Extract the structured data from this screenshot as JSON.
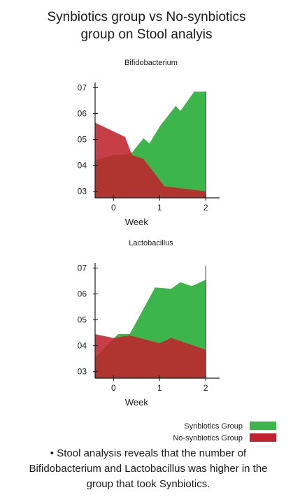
{
  "title_line1": "Synbiotics group vs No-synbiotics",
  "title_line2": "group on Stool analyis",
  "colors": {
    "synbiotics": "#3cb54a",
    "no_synbiotics": "#c0232e"
  },
  "legend": {
    "synbiotics": "Synbiotics Group",
    "no_synbiotics": "No-synbiotics Group"
  },
  "note": "•  Stool analysis reveals that the number of Bifidobacterium and Lactobacillus was higher in the group that took Synbiotics.",
  "chart_data": [
    {
      "type": "area",
      "title": "Bifidobacterium",
      "xlabel": "Week",
      "ylabel": "",
      "xlim": [
        -0.4,
        2.3
      ],
      "ylim": [
        2.75,
        7.2
      ],
      "x_ticks": [
        "0",
        "1",
        "2"
      ],
      "y_ticks": [
        "03",
        "04",
        "05",
        "06",
        "07"
      ],
      "series": [
        {
          "name": "Synbiotics Group",
          "x": [
            -0.4,
            0.0,
            0.25,
            0.4,
            0.65,
            0.78,
            1.0,
            1.35,
            1.45,
            1.75,
            2.0
          ],
          "values": [
            4.2,
            4.4,
            4.4,
            4.5,
            5.05,
            4.85,
            5.5,
            6.3,
            6.1,
            6.85,
            6.85
          ]
        },
        {
          "name": "No-synbiotics Group",
          "x": [
            -0.4,
            0.25,
            0.4,
            0.65,
            1.1,
            2.0
          ],
          "values": [
            5.65,
            5.1,
            4.4,
            4.25,
            3.2,
            3.0
          ]
        }
      ]
    },
    {
      "type": "area",
      "title": "Lactobacillus",
      "xlabel": "Week",
      "ylabel": "",
      "xlim": [
        -0.4,
        2.3
      ],
      "ylim": [
        2.75,
        7.2
      ],
      "x_ticks": [
        "0",
        "1",
        "2"
      ],
      "y_ticks": [
        "03",
        "04",
        "05",
        "06",
        "07"
      ],
      "series": [
        {
          "name": "Synbiotics Group",
          "x": [
            -0.4,
            0.1,
            0.35,
            0.9,
            1.25,
            1.45,
            1.7,
            2.0
          ],
          "values": [
            3.55,
            4.45,
            4.45,
            6.25,
            6.2,
            6.45,
            6.3,
            6.55
          ]
        },
        {
          "name": "No-synbiotics Group",
          "x": [
            -0.4,
            0.0,
            0.35,
            1.0,
            1.25,
            2.0
          ],
          "values": [
            4.45,
            4.3,
            4.4,
            4.1,
            4.3,
            3.85
          ]
        }
      ]
    }
  ]
}
